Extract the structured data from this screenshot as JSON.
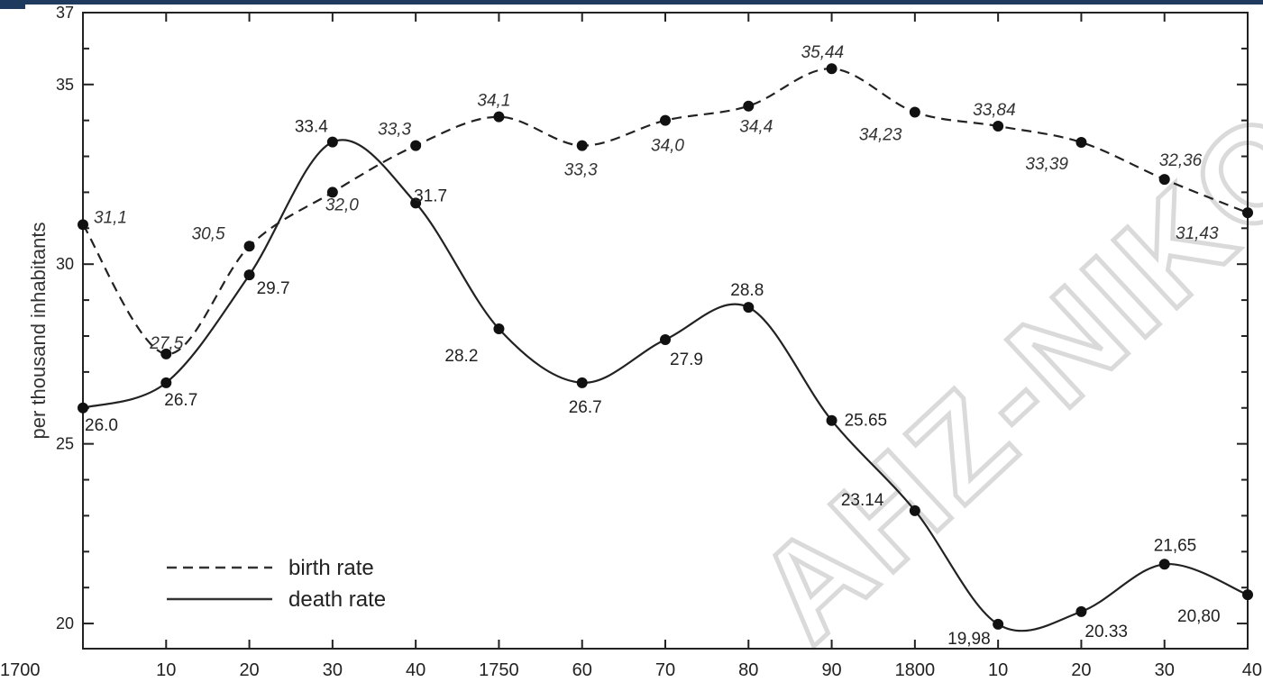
{
  "chart_data": {
    "type": "line",
    "x": [
      1700,
      1710,
      1720,
      1730,
      1740,
      1750,
      1760,
      1770,
      1780,
      1790,
      1800,
      1810,
      1820,
      1830,
      1840
    ],
    "x_tick_labels": [
      "1700",
      "10",
      "20",
      "30",
      "40",
      "1750",
      "60",
      "70",
      "80",
      "90",
      "1800",
      "10",
      "20",
      "30",
      "40"
    ],
    "ylabel": "per thousand inhabitants",
    "ylim": [
      19.3,
      37
    ],
    "y_ticks": [
      {
        "value": 20,
        "label": "20"
      },
      {
        "value": 25,
        "label": "25"
      },
      {
        "value": 30,
        "label": "30"
      },
      {
        "value": 35,
        "label": "35"
      },
      {
        "value": 37,
        "label": "37"
      }
    ],
    "series": [
      {
        "name": "birth rate",
        "style": "dashed",
        "color": "#222222",
        "values": [
          31.1,
          27.5,
          30.5,
          32.0,
          33.3,
          34.1,
          33.3,
          34.0,
          34.4,
          35.44,
          34.23,
          33.84,
          33.39,
          32.36,
          31.43
        ],
        "labels": [
          "31,1",
          "27,5",
          "30,5",
          "32,0",
          "33,3",
          "34,1",
          "33,3",
          "34,0",
          "34,4",
          "35,44",
          "34,23",
          "33,84",
          "33,39",
          "32,36",
          "31,43"
        ]
      },
      {
        "name": "death rate",
        "style": "solid",
        "color": "#222222",
        "values": [
          26.0,
          26.7,
          29.7,
          33.4,
          31.7,
          28.2,
          26.7,
          27.9,
          28.8,
          25.65,
          23.14,
          19.98,
          20.33,
          21.65,
          20.8
        ],
        "labels": [
          "26.0",
          "26.7",
          "29.7",
          "33.4",
          "31.7",
          "28.2",
          "26.7",
          "27.9",
          "28.8",
          "25.65",
          "23.14",
          "19,98",
          "20.33",
          "21,65",
          "20,80"
        ]
      }
    ],
    "legend": {
      "placement": "bottom-left",
      "items": [
        "birth rate",
        "death rate"
      ]
    },
    "grid": false
  },
  "watermark": {
    "text": "AHZ-NIKO"
  }
}
